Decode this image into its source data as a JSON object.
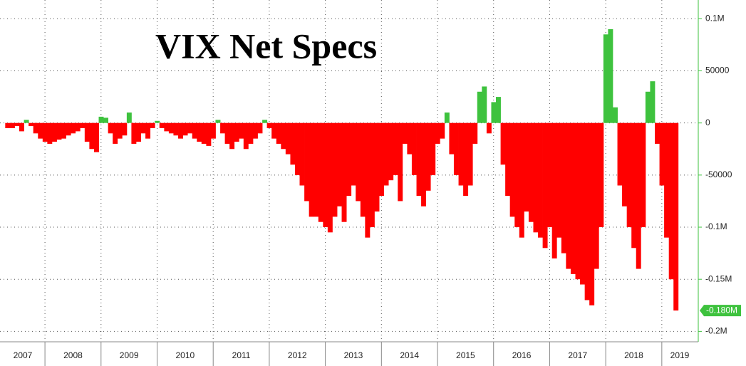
{
  "chart_data": {
    "type": "bar",
    "title": "VIX Net Specs",
    "x": [
      2007.333,
      2007.417,
      2007.5,
      2007.583,
      2007.667,
      2007.75,
      2007.833,
      2007.917,
      2008.0,
      2008.083,
      2008.167,
      2008.25,
      2008.333,
      2008.417,
      2008.5,
      2008.583,
      2008.667,
      2008.75,
      2008.833,
      2008.917,
      2009.0,
      2009.083,
      2009.167,
      2009.25,
      2009.333,
      2009.417,
      2009.5,
      2009.583,
      2009.667,
      2009.75,
      2009.833,
      2009.917,
      2010.0,
      2010.083,
      2010.167,
      2010.25,
      2010.333,
      2010.417,
      2010.5,
      2010.583,
      2010.667,
      2010.75,
      2010.833,
      2010.917,
      2011.0,
      2011.083,
      2011.167,
      2011.25,
      2011.333,
      2011.417,
      2011.5,
      2011.583,
      2011.667,
      2011.75,
      2011.833,
      2011.917,
      2012.0,
      2012.083,
      2012.167,
      2012.25,
      2012.333,
      2012.417,
      2012.5,
      2012.583,
      2012.667,
      2012.75,
      2012.833,
      2012.917,
      2013.0,
      2013.083,
      2013.167,
      2013.25,
      2013.333,
      2013.417,
      2013.5,
      2013.583,
      2013.667,
      2013.75,
      2013.833,
      2013.917,
      2014.0,
      2014.083,
      2014.167,
      2014.25,
      2014.333,
      2014.417,
      2014.5,
      2014.583,
      2014.667,
      2014.75,
      2014.833,
      2014.917,
      2015.0,
      2015.083,
      2015.167,
      2015.25,
      2015.333,
      2015.417,
      2015.5,
      2015.583,
      2015.667,
      2015.75,
      2015.833,
      2015.917,
      2016.0,
      2016.083,
      2016.167,
      2016.25,
      2016.333,
      2016.417,
      2016.5,
      2016.583,
      2016.667,
      2016.75,
      2016.833,
      2016.917,
      2017.0,
      2017.083,
      2017.167,
      2017.25,
      2017.333,
      2017.417,
      2017.5,
      2017.583,
      2017.667,
      2017.75,
      2017.833,
      2017.917,
      2018.0,
      2018.083,
      2018.167,
      2018.25,
      2018.333,
      2018.417,
      2018.5,
      2018.583,
      2018.667,
      2018.75,
      2018.833,
      2018.917,
      2019.0,
      2019.083,
      2019.167,
      2019.25
    ],
    "values": [
      -5000,
      -5000,
      -3000,
      -8000,
      3000,
      -3000,
      -10000,
      -15000,
      -18000,
      -20000,
      -18000,
      -16000,
      -15000,
      -12000,
      -10000,
      -8000,
      -5000,
      -18000,
      -25000,
      -28000,
      6000,
      5000,
      -10000,
      -20000,
      -15000,
      -12000,
      10000,
      -20000,
      -18000,
      -10000,
      -15000,
      -5000,
      2000,
      -5000,
      -8000,
      -10000,
      -12000,
      -15000,
      -12000,
      -10000,
      -15000,
      -18000,
      -20000,
      -22000,
      -15000,
      3000,
      -10000,
      -20000,
      -25000,
      -18000,
      -15000,
      -25000,
      -20000,
      -15000,
      -10000,
      3000,
      -5000,
      -15000,
      -20000,
      -25000,
      -30000,
      -40000,
      -50000,
      -60000,
      -75000,
      -90000,
      -90000,
      -95000,
      -100000,
      -105000,
      -90000,
      -80000,
      -95000,
      -70000,
      -60000,
      -75000,
      -90000,
      -110000,
      -100000,
      -85000,
      -70000,
      -60000,
      -55000,
      -50000,
      -75000,
      -20000,
      -30000,
      -50000,
      -70000,
      -80000,
      -65000,
      -50000,
      -20000,
      -15000,
      10000,
      -30000,
      -50000,
      -60000,
      -70000,
      -60000,
      -20000,
      30000,
      35000,
      -10000,
      20000,
      25000,
      -40000,
      -70000,
      -90000,
      -100000,
      -110000,
      -85000,
      -95000,
      -105000,
      -110000,
      -120000,
      -100000,
      -130000,
      -110000,
      -125000,
      -140000,
      -145000,
      -150000,
      -155000,
      -170000,
      -175000,
      -140000,
      -100000,
      85000,
      90000,
      15000,
      -60000,
      -80000,
      -100000,
      -120000,
      -140000,
      -100000,
      30000,
      40000,
      -20000,
      -60000,
      -110000,
      -150000,
      -180000
    ],
    "color_positive": "#3ec23e",
    "color_negative": "#ff0000",
    "xlim": [
      2007.3,
      2019.65
    ],
    "xticks": [
      2007,
      2008,
      2009,
      2010,
      2011,
      2012,
      2013,
      2014,
      2015,
      2016,
      2017,
      2018,
      2019
    ],
    "ylim": [
      -210000,
      118000
    ],
    "yticks": [
      {
        "value": 100000,
        "label": "0.1M"
      },
      50000,
      0,
      -50000,
      {
        "value": -100000,
        "label": "-0.1M"
      },
      {
        "value": -150000,
        "label": "-0.15M"
      },
      {
        "value": -200000,
        "label": "-0.2M"
      }
    ],
    "grid": true,
    "annotations": [
      {
        "value": -180000,
        "label": "-0.180M"
      }
    ]
  }
}
